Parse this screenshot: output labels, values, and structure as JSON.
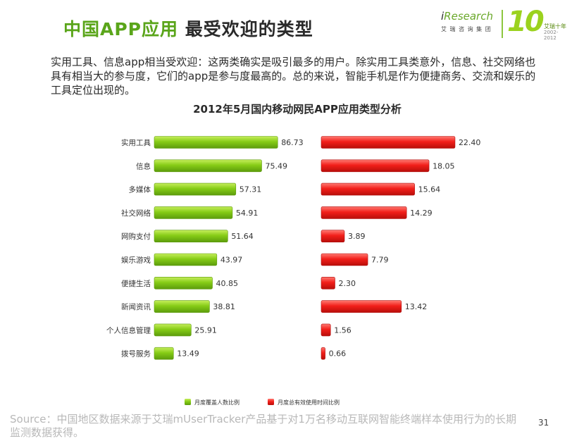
{
  "header": {
    "title_accent": "中国APP应用",
    "title_main": "最受欢迎的类型"
  },
  "logo": {
    "brand_prefix": "i",
    "brand_rest": "Research",
    "brand_cn": "艾 瑞 咨 询 集 团",
    "anniversary": "10",
    "anniversary_cn": "艾瑞十年",
    "anniversary_years": "2002-2012"
  },
  "intro_text": "实用工具、信息app相当受欢迎：这两类确实是吸引最多的用户。除实用工具类意外，信息、社交网络也具有相当大的参与度，它们的app是参与度最高的。总的来说，智能手机是作为便捷商务、交流和娱乐的工具定位出现的。",
  "chart_data": {
    "type": "bar",
    "orientation": "horizontal",
    "title": "2012年5月国内移动网民APP应用类型分析",
    "categories": [
      "实用工具",
      "信息",
      "多媒体",
      "社交网络",
      "网购支付",
      "娱乐游戏",
      "便捷生活",
      "新闻资讯",
      "个人信息管理",
      "拨号服务"
    ],
    "series": [
      {
        "name": "月度覆盖人数比例",
        "color": "#7cc418",
        "values": [
          86.73,
          75.49,
          57.31,
          54.91,
          51.64,
          43.97,
          40.85,
          38.81,
          25.91,
          13.49
        ],
        "value_labels": [
          "86.73",
          "75.49",
          "57.31",
          "54.91",
          "51.64",
          "43.97",
          "40.85",
          "38.81",
          "25.91",
          "13.49"
        ]
      },
      {
        "name": "月度总有效使用时间比例",
        "color": "#f0221d",
        "values": [
          22.4,
          18.05,
          15.64,
          14.29,
          3.89,
          7.79,
          2.3,
          13.42,
          1.56,
          0.66
        ],
        "value_labels": [
          "22.40",
          "18.05",
          "15.64",
          "14.29",
          "3.89",
          "7.79",
          "2.30",
          "13.42",
          "1.56",
          "0.66"
        ]
      }
    ],
    "legend_position": "bottom-center",
    "xlabel": "",
    "ylabel": ""
  },
  "footer": {
    "source": "Source：中国地区数据来源于艾瑞mUserTracker产品基于对1万名移动互联网智能终端样本使用行为的长期监测数据获得。",
    "page_number": "31"
  }
}
